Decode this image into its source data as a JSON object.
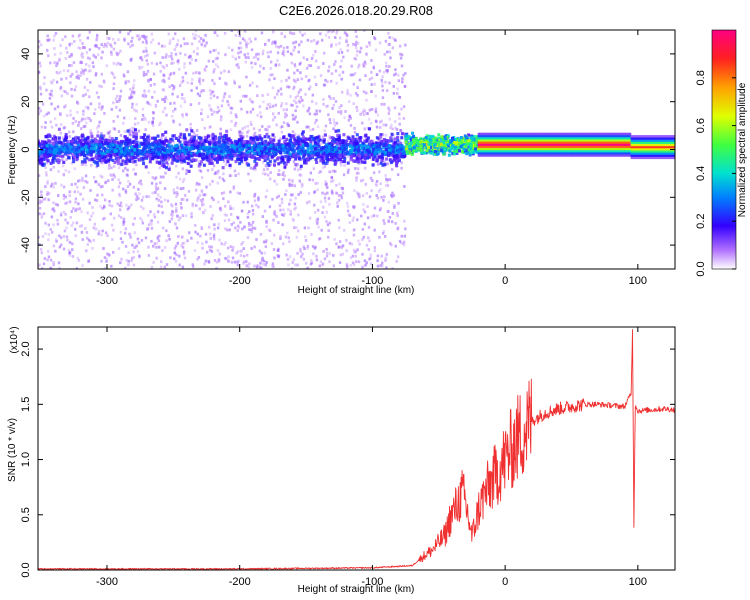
{
  "title": "C2E6.2026.018.20.29.R08",
  "chart_data": [
    {
      "type": "heatmap",
      "xlabel": "Height of straight line (km)",
      "ylabel": "Frequency (Hz)",
      "xlim": [
        -352,
        128
      ],
      "ylim": [
        -50,
        50
      ],
      "xticks": [
        -300,
        -200,
        -100,
        0,
        100
      ],
      "yticks": [
        -40,
        -20,
        0,
        20,
        40
      ],
      "colorbar": {
        "label": "Normalized spectral amplitude",
        "range": [
          0,
          1
        ],
        "ticks": [
          0.0,
          0.2,
          0.4,
          0.6,
          0.8
        ],
        "tick_labels": [
          "0.0",
          "0.2",
          "0.4",
          "0.6",
          "0.8"
        ],
        "colormap": [
          "#ffffff",
          "#b070ff",
          "#3300ff",
          "#0080ff",
          "#00e0d0",
          "#40ff40",
          "#e0ff00",
          "#ffa000",
          "#ff2020",
          "#ff0080"
        ]
      },
      "bands": [
        {
          "x_range": [
            -352,
            -75
          ],
          "freq_center": 0,
          "core_halfwidth": 10,
          "scatter_halfwidth": 50,
          "amplitude": [
            0.1,
            0.25
          ]
        },
        {
          "x_range": [
            -75,
            -20
          ],
          "freq_center": 2,
          "core_halfwidth": 6,
          "amplitude": [
            0.3,
            0.7
          ]
        },
        {
          "x_range": [
            -20,
            95
          ],
          "freq_center": 2,
          "core_halfwidth": 2,
          "amplitude": [
            0.6,
            1.0
          ]
        },
        {
          "x_range": [
            95,
            128
          ],
          "freq_center": 1,
          "core_halfwidth": 2,
          "amplitude": [
            0.4,
            0.8
          ]
        }
      ]
    },
    {
      "type": "line",
      "xlabel": "Height of straight line (km)",
      "ylabel": "SNR (10 * v/v)",
      "yscale_label": "(x10⁴)",
      "xlim": [
        -352,
        128
      ],
      "ylim": [
        0,
        2.2
      ],
      "xticks": [
        -300,
        -200,
        -100,
        0,
        100
      ],
      "yticks": [
        0.0,
        0.5,
        1.0,
        1.5,
        2.0
      ],
      "ytick_labels": [
        "0.0",
        "0.5",
        "1.0",
        "1.5",
        "2.0"
      ],
      "color": "#f03030",
      "series": [
        {
          "x": [
            -352,
            -200,
            -100,
            -70,
            -62,
            -55,
            -50,
            -45,
            -42,
            -38,
            -35,
            -32,
            -30,
            -28,
            -25,
            -20,
            -15,
            -10,
            -5,
            0,
            5,
            10,
            15,
            20,
            30,
            40,
            50,
            60,
            70,
            80,
            90,
            95,
            96,
            97,
            98,
            100,
            110,
            120,
            128
          ],
          "y": [
            0.01,
            0.01,
            0.02,
            0.04,
            0.12,
            0.18,
            0.25,
            0.32,
            0.45,
            0.55,
            0.62,
            0.7,
            0.6,
            0.5,
            0.3,
            0.55,
            0.7,
            0.8,
            0.9,
            1.0,
            1.1,
            1.2,
            1.28,
            1.35,
            1.42,
            1.46,
            1.48,
            1.5,
            1.5,
            1.49,
            1.48,
            1.6,
            2.2,
            0.35,
            1.5,
            1.44,
            1.45,
            1.46,
            1.45
          ]
        }
      ]
    }
  ]
}
